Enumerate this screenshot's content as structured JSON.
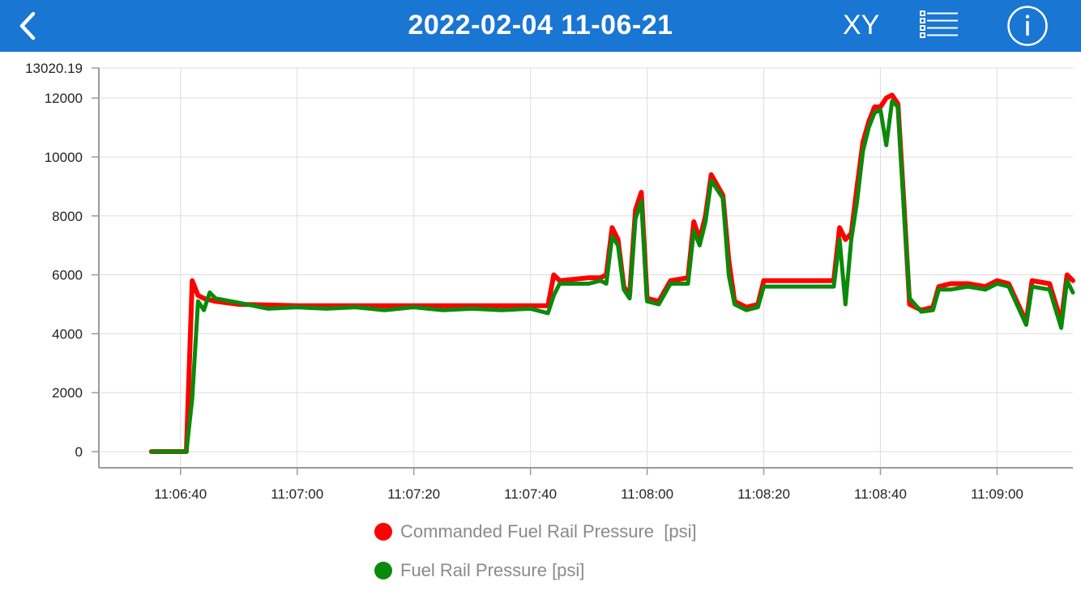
{
  "header": {
    "title": "2022-02-04 11-06-21",
    "xy_label": "XY",
    "bg_color": "#1976d3"
  },
  "icons": {
    "back": "chevron-left-icon",
    "list": "list-icon",
    "info": "info-icon"
  },
  "chart_data": {
    "type": "line",
    "title": "",
    "xlabel": "",
    "ylabel": "",
    "y_max_label": "13020.19",
    "ylim": [
      -550,
      13020.19
    ],
    "y_ticks": [
      0,
      2000,
      4000,
      6000,
      8000,
      10000,
      12000
    ],
    "xlim": [
      "11:06:26",
      "11:09:13"
    ],
    "x_ticks": [
      "11:06:40",
      "11:07:00",
      "11:07:20",
      "11:07:40",
      "11:08:00",
      "11:08:20",
      "11:08:40",
      "11:09:00"
    ],
    "grid": true,
    "legend_placement": "bottom",
    "series": [
      {
        "name": "Commanded Fuel Rail Pressure  [psi]",
        "color": "#ff0000",
        "points": [
          [
            "11:06:35",
            0
          ],
          [
            "11:06:41",
            0
          ],
          [
            "11:06:42",
            5800
          ],
          [
            "11:06:43",
            5300
          ],
          [
            "11:06:44",
            5200
          ],
          [
            "11:06:46",
            5100
          ],
          [
            "11:06:50",
            5000
          ],
          [
            "11:07:00",
            4950
          ],
          [
            "11:07:20",
            4950
          ],
          [
            "11:07:40",
            4950
          ],
          [
            "11:07:43",
            4950
          ],
          [
            "11:07:44",
            6000
          ],
          [
            "11:07:45",
            5800
          ],
          [
            "11:07:50",
            5900
          ],
          [
            "11:07:52",
            5900
          ],
          [
            "11:07:53",
            6000
          ],
          [
            "11:07:54",
            7600
          ],
          [
            "11:07:55",
            7200
          ],
          [
            "11:07:56",
            5600
          ],
          [
            "11:07:57",
            5300
          ],
          [
            "11:07:58",
            8200
          ],
          [
            "11:07:59",
            8800
          ],
          [
            "11:08:00",
            5200
          ],
          [
            "11:08:02",
            5100
          ],
          [
            "11:08:04",
            5800
          ],
          [
            "11:08:07",
            5900
          ],
          [
            "11:08:08",
            7800
          ],
          [
            "11:08:09",
            7200
          ],
          [
            "11:08:10",
            8000
          ],
          [
            "11:08:11",
            9400
          ],
          [
            "11:08:13",
            8700
          ],
          [
            "11:08:14",
            6500
          ],
          [
            "11:08:15",
            5100
          ],
          [
            "11:08:17",
            4900
          ],
          [
            "11:08:19",
            5000
          ],
          [
            "11:08:20",
            5800
          ],
          [
            "11:08:25",
            5800
          ],
          [
            "11:08:30",
            5800
          ],
          [
            "11:08:32",
            5800
          ],
          [
            "11:08:33",
            7600
          ],
          [
            "11:08:34",
            7200
          ],
          [
            "11:08:35",
            7400
          ],
          [
            "11:08:36",
            9000
          ],
          [
            "11:08:37",
            10500
          ],
          [
            "11:08:38",
            11200
          ],
          [
            "11:08:39",
            11700
          ],
          [
            "11:08:40",
            11700
          ],
          [
            "11:08:41",
            12000
          ],
          [
            "11:08:42",
            12100
          ],
          [
            "11:08:43",
            11800
          ],
          [
            "11:08:44",
            8500
          ],
          [
            "11:08:45",
            5000
          ],
          [
            "11:08:47",
            4800
          ],
          [
            "11:08:49",
            4900
          ],
          [
            "11:08:50",
            5600
          ],
          [
            "11:08:52",
            5700
          ],
          [
            "11:08:55",
            5700
          ],
          [
            "11:08:58",
            5600
          ],
          [
            "11:09:00",
            5800
          ],
          [
            "11:09:02",
            5700
          ],
          [
            "11:09:05",
            4400
          ],
          [
            "11:09:06",
            5800
          ],
          [
            "11:09:09",
            5700
          ],
          [
            "11:09:11",
            4400
          ],
          [
            "11:09:12",
            6000
          ],
          [
            "11:09:13",
            5800
          ]
        ]
      },
      {
        "name": "Fuel Rail Pressure [psi]",
        "color": "#0a8a0a",
        "points": [
          [
            "11:06:35",
            0
          ],
          [
            "11:06:41",
            0
          ],
          [
            "11:06:42",
            1800
          ],
          [
            "11:06:43",
            5100
          ],
          [
            "11:06:44",
            4800
          ],
          [
            "11:06:45",
            5400
          ],
          [
            "11:06:46",
            5200
          ],
          [
            "11:06:50",
            5050
          ],
          [
            "11:06:55",
            4850
          ],
          [
            "11:07:00",
            4900
          ],
          [
            "11:07:05",
            4850
          ],
          [
            "11:07:10",
            4900
          ],
          [
            "11:07:15",
            4800
          ],
          [
            "11:07:20",
            4900
          ],
          [
            "11:07:25",
            4800
          ],
          [
            "11:07:30",
            4850
          ],
          [
            "11:07:35",
            4800
          ],
          [
            "11:07:40",
            4850
          ],
          [
            "11:07:43",
            4700
          ],
          [
            "11:07:44",
            5300
          ],
          [
            "11:07:45",
            5700
          ],
          [
            "11:07:50",
            5700
          ],
          [
            "11:07:52",
            5800
          ],
          [
            "11:07:53",
            5700
          ],
          [
            "11:07:54",
            7300
          ],
          [
            "11:07:55",
            7000
          ],
          [
            "11:07:56",
            5500
          ],
          [
            "11:07:57",
            5200
          ],
          [
            "11:07:58",
            7900
          ],
          [
            "11:07:59",
            8500
          ],
          [
            "11:08:00",
            5100
          ],
          [
            "11:08:02",
            5000
          ],
          [
            "11:08:04",
            5700
          ],
          [
            "11:08:07",
            5700
          ],
          [
            "11:08:08",
            7500
          ],
          [
            "11:08:09",
            7000
          ],
          [
            "11:08:10",
            7800
          ],
          [
            "11:08:11",
            9200
          ],
          [
            "11:08:13",
            8600
          ],
          [
            "11:08:14",
            6000
          ],
          [
            "11:08:15",
            5000
          ],
          [
            "11:08:17",
            4800
          ],
          [
            "11:08:19",
            4900
          ],
          [
            "11:08:20",
            5600
          ],
          [
            "11:08:25",
            5600
          ],
          [
            "11:08:30",
            5600
          ],
          [
            "11:08:32",
            5600
          ],
          [
            "11:08:33",
            7200
          ],
          [
            "11:08:34",
            5000
          ],
          [
            "11:08:35",
            7200
          ],
          [
            "11:08:36",
            8500
          ],
          [
            "11:08:37",
            10200
          ],
          [
            "11:08:38",
            11000
          ],
          [
            "11:08:39",
            11500
          ],
          [
            "11:08:40",
            11600
          ],
          [
            "11:08:41",
            10400
          ],
          [
            "11:08:42",
            11900
          ],
          [
            "11:08:43",
            11700
          ],
          [
            "11:08:44",
            8300
          ],
          [
            "11:08:45",
            5200
          ],
          [
            "11:08:47",
            4750
          ],
          [
            "11:08:49",
            4800
          ],
          [
            "11:08:50",
            5500
          ],
          [
            "11:08:52",
            5500
          ],
          [
            "11:08:55",
            5600
          ],
          [
            "11:08:58",
            5500
          ],
          [
            "11:09:00",
            5700
          ],
          [
            "11:09:02",
            5600
          ],
          [
            "11:09:05",
            4300
          ],
          [
            "11:09:06",
            5600
          ],
          [
            "11:09:09",
            5500
          ],
          [
            "11:09:11",
            4200
          ],
          [
            "11:09:12",
            5800
          ],
          [
            "11:09:13",
            5400
          ]
        ]
      }
    ]
  }
}
